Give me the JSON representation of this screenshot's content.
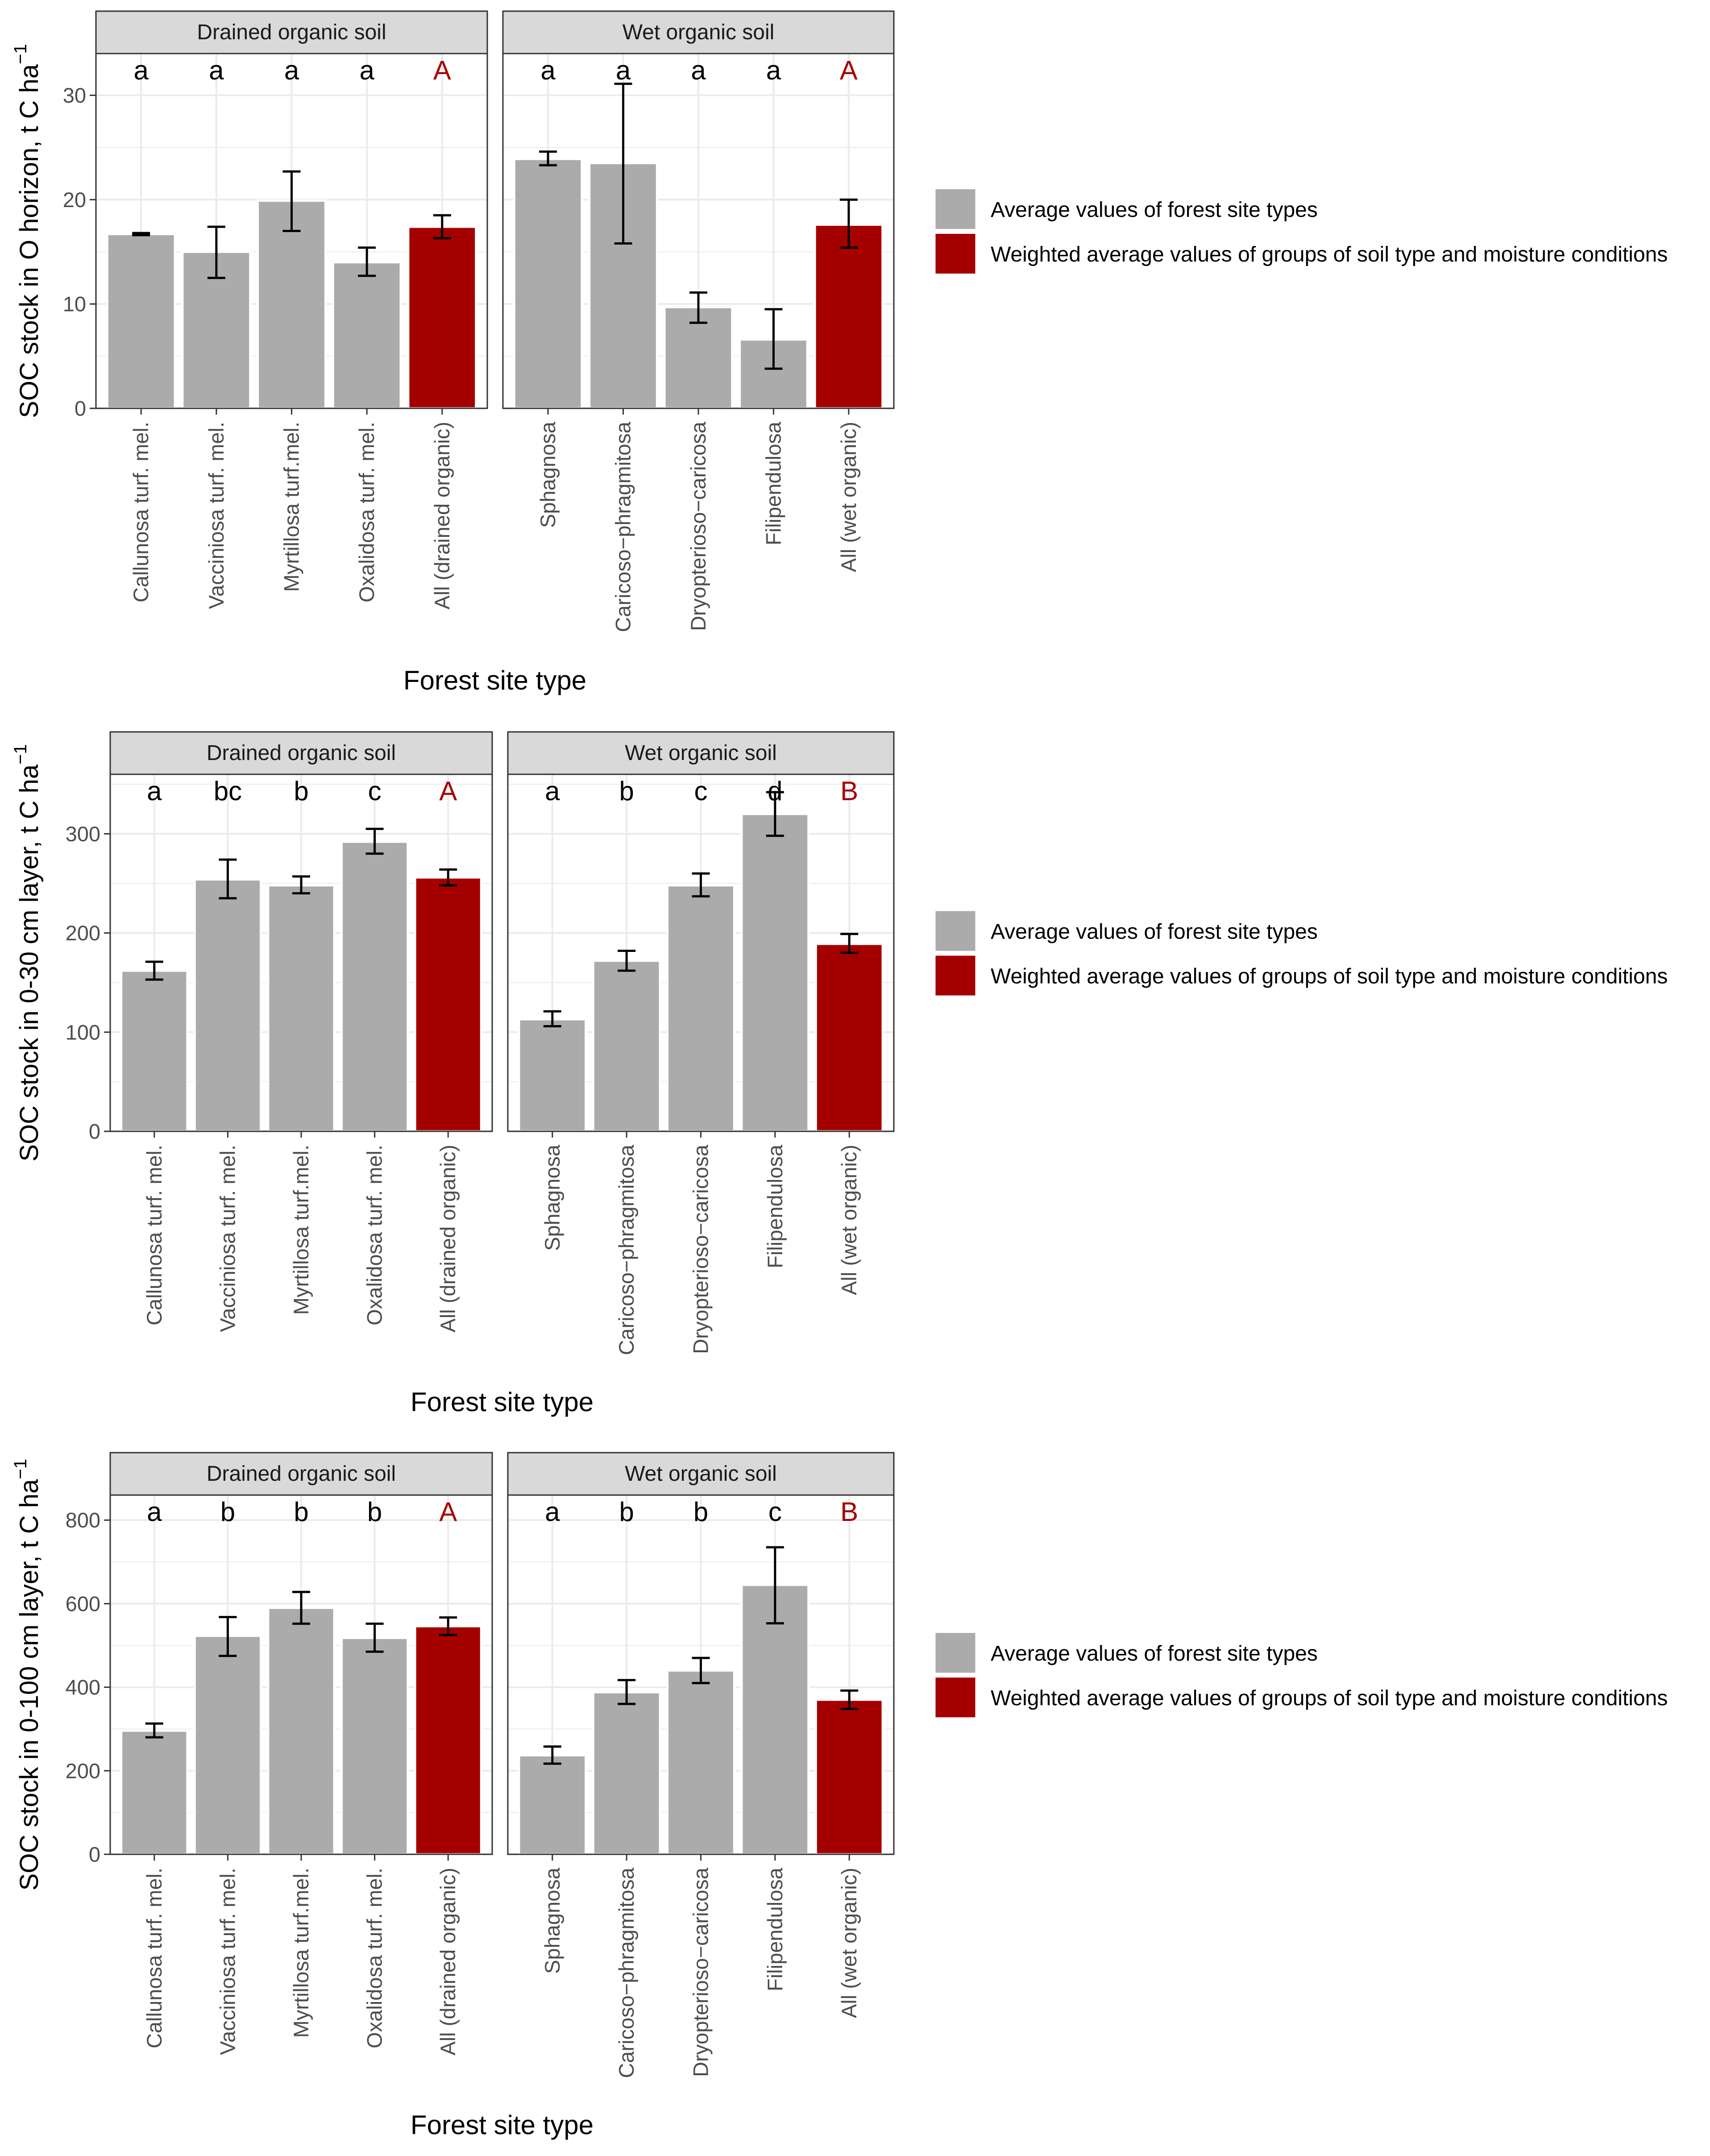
{
  "colors": {
    "site_type_bar": "#ABABAB",
    "group_bar": "#A50000",
    "group_letter": "#A50000",
    "strip_fill": "#D9D9D9",
    "grid": "#EBEBEB",
    "panel_border": "#333333",
    "text": "#000000",
    "tick_text": "#4D4D4D"
  },
  "legend": {
    "items": [
      {
        "label": "Average values of forest site types",
        "color": "#ABABAB"
      },
      {
        "label": "Weighted average values of groups of soil type and moisture conditions",
        "color": "#A50000"
      }
    ]
  },
  "chart_data": [
    {
      "type": "bar",
      "ylabel": "SOC stock in O horizon, t C ha",
      "ylabel_superscript": "−1",
      "xlabel": "Forest site type",
      "ylim": [
        0,
        34
      ],
      "yticks": [
        0,
        10,
        20,
        30
      ],
      "panels": [
        {
          "strip": "Drained organic soil",
          "categories": [
            "Callunosa turf. mel.",
            "Vacciniosa turf. mel.",
            "Myrtillosa turf.mel.",
            "Oxalidosa turf. mel.",
            "All (drained organic)"
          ],
          "values": [
            16.7,
            15.0,
            19.9,
            14.0,
            17.4
          ],
          "err_low": [
            16.6,
            12.5,
            17.0,
            12.7,
            16.3
          ],
          "err_high": [
            16.8,
            17.4,
            22.7,
            15.4,
            18.5
          ],
          "letters": [
            "a",
            "a",
            "a",
            "a",
            "A"
          ],
          "kinds": [
            "site",
            "site",
            "site",
            "site",
            "group"
          ]
        },
        {
          "strip": "Wet organic soil",
          "categories": [
            "Sphagnosa",
            "Caricoso−phragmitosa",
            "Dryopterioso−caricosa",
            "Filipendulosa",
            "All (wet organic)"
          ],
          "values": [
            23.9,
            23.5,
            9.7,
            6.6,
            17.6
          ],
          "err_low": [
            23.3,
            15.8,
            8.2,
            3.8,
            15.4
          ],
          "err_high": [
            24.6,
            31.1,
            11.1,
            9.5,
            20.0
          ],
          "letters": [
            "a",
            "a",
            "a",
            "a",
            "A"
          ],
          "kinds": [
            "site",
            "site",
            "site",
            "site",
            "group"
          ]
        }
      ]
    },
    {
      "type": "bar",
      "ylabel": "SOC stock in 0-30 cm layer, t C ha",
      "ylabel_superscript": "−1",
      "xlabel": "Forest site type",
      "ylim": [
        0,
        360
      ],
      "yticks": [
        0,
        100,
        200,
        300
      ],
      "panels": [
        {
          "strip": "Drained organic soil",
          "categories": [
            "Callunosa turf. mel.",
            "Vacciniosa turf. mel.",
            "Myrtillosa turf.mel.",
            "Oxalidosa turf. mel.",
            "All (drained organic)"
          ],
          "values": [
            162,
            254,
            248,
            292,
            256
          ],
          "err_low": [
            153,
            235,
            240,
            280,
            248
          ],
          "err_high": [
            171,
            274,
            257,
            305,
            264
          ],
          "letters": [
            "a",
            "bc",
            "b",
            "c",
            "A"
          ],
          "kinds": [
            "site",
            "site",
            "site",
            "site",
            "group"
          ]
        },
        {
          "strip": "Wet organic soil",
          "categories": [
            "Sphagnosa",
            "Caricoso−phragmitosa",
            "Dryopterioso−caricosa",
            "Filipendulosa",
            "All (wet organic)"
          ],
          "values": [
            113,
            172,
            248,
            320,
            189
          ],
          "err_low": [
            106,
            162,
            237,
            298,
            180
          ],
          "err_high": [
            121,
            182,
            260,
            342,
            199
          ],
          "letters": [
            "a",
            "b",
            "c",
            "d",
            "B"
          ],
          "kinds": [
            "site",
            "site",
            "site",
            "site",
            "group"
          ]
        }
      ]
    },
    {
      "type": "bar",
      "ylabel": "SOC stock in 0-100 cm layer, t C ha",
      "ylabel_superscript": "−1",
      "xlabel": "Forest site type",
      "ylim": [
        0,
        860
      ],
      "yticks": [
        0,
        200,
        400,
        600,
        800
      ],
      "panels": [
        {
          "strip": "Drained organic soil",
          "categories": [
            "Callunosa turf. mel.",
            "Vacciniosa turf. mel.",
            "Myrtillosa turf.mel.",
            "Oxalidosa turf. mel.",
            "All (drained organic)"
          ],
          "values": [
            296,
            523,
            590,
            518,
            546
          ],
          "err_low": [
            280,
            475,
            552,
            485,
            525
          ],
          "err_high": [
            313,
            568,
            628,
            552,
            567
          ],
          "letters": [
            "a",
            "b",
            "b",
            "b",
            "A"
          ],
          "kinds": [
            "site",
            "site",
            "site",
            "site",
            "group"
          ]
        },
        {
          "strip": "Wet organic soil",
          "categories": [
            "Sphagnosa",
            "Caricoso−phragmitosa",
            "Dryopterioso−caricosa",
            "Filipendulosa",
            "All (wet organic)"
          ],
          "values": [
            237,
            388,
            440,
            645,
            370
          ],
          "err_low": [
            217,
            360,
            410,
            553,
            348
          ],
          "err_high": [
            258,
            417,
            470,
            735,
            392
          ],
          "letters": [
            "a",
            "b",
            "b",
            "c",
            "B"
          ],
          "kinds": [
            "site",
            "site",
            "site",
            "site",
            "group"
          ]
        }
      ]
    }
  ]
}
